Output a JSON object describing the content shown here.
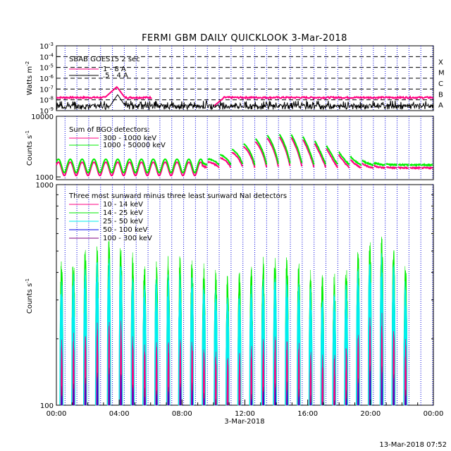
{
  "chart_data": [
    {
      "type": "line",
      "panel": "goes",
      "title": "FERMI GBM DAILY QUICKLOOK    3-Mar-2018",
      "ylabel": "Watts m^-2",
      "y_scale": "log",
      "ylim": [
        1e-09,
        0.001
      ],
      "y_tick_labels": [
        {
          "exp": "-3"
        },
        {
          "exp": "-4"
        },
        {
          "exp": "-5"
        },
        {
          "exp": "-6"
        },
        {
          "exp": "-7"
        },
        {
          "exp": "-8"
        },
        {
          "exp": "-9"
        }
      ],
      "flare_classes": [
        {
          "label": "X",
          "value": 0.0001
        },
        {
          "label": "M",
          "value": 1e-05
        },
        {
          "label": "C",
          "value": 1e-06
        },
        {
          "label": "B",
          "value": 1e-07
        },
        {
          "label": "A",
          "value": 1e-08
        }
      ],
      "legend_title": "SBAB GOES15 2 sec",
      "series": [
        {
          "name": "1 - 8 A",
          "color": "#ff0080",
          "base": 1.6e-08,
          "peak": {
            "hour": 3.85,
            "value": 1.6e-07
          },
          "gap": [
            6.1,
            10.0
          ],
          "ragged_low": 1.3e-08,
          "ragged_high": 2e-08
        },
        {
          "name": ".5 - 4 A",
          "color": "#000000",
          "base": 1.6e-09,
          "peak": {
            "hour": 3.9,
            "value": 3e-08
          },
          "noisy_floor": true
        }
      ]
    },
    {
      "type": "line",
      "panel": "bgo",
      "ylabel": "Counts s^-1",
      "y_scale": "log",
      "ylim": [
        900,
        10000
      ],
      "y_tick_labels": [
        "10000",
        "1000"
      ],
      "legend_title": "Sum of BGO detectors:",
      "series": [
        {
          "name": "300 - 1000 keV",
          "color": "#ff0080"
        },
        {
          "name": "1000 - 50000 keV",
          "color": "#00ee00"
        }
      ]
    },
    {
      "type": "line",
      "panel": "nai",
      "ylabel": "Counts s^-1",
      "y_scale": "log",
      "ylim": [
        100,
        1000
      ],
      "y_tick_labels": [
        "1000",
        "100"
      ],
      "x_tick_labels": [
        "00:00",
        "04:00",
        "08:00",
        "12:00",
        "16:00",
        "20:00",
        "00:00"
      ],
      "xlabel": "3-Mar-2018",
      "legend_title": "Three most sunward minus three least sunward NaI detectors",
      "series": [
        {
          "name": "10 - 14 keV",
          "color": "#ff0080"
        },
        {
          "name": "14 - 25 keV",
          "color": "#00ee00"
        },
        {
          "name": "25 - 50 keV",
          "color": "#00eeee"
        },
        {
          "name": "50 - 100 keV",
          "color": "#0000ee"
        },
        {
          "name": "100 - 300 keV",
          "color": "#800080"
        }
      ]
    }
  ],
  "footer": {
    "timestamp": "13-Mar-2018 07:52"
  }
}
